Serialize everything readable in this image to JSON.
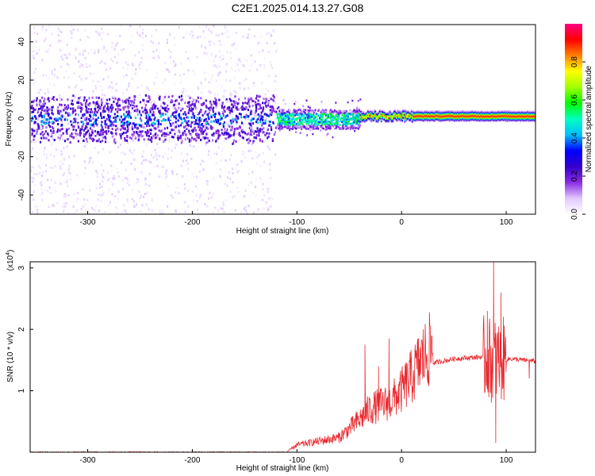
{
  "title": "C2E1.2025.014.13.27.G08",
  "chart_data": [
    {
      "type": "heatmap",
      "xlabel": "Height of straight line (km)",
      "ylabel": "Frequency (Hz)",
      "xlim": [
        -355,
        128
      ],
      "ylim": [
        -50,
        49
      ],
      "xticks": [
        -300,
        -200,
        -100,
        0,
        100
      ],
      "yticks": [
        -40,
        -20,
        0,
        20,
        40
      ],
      "colorbar": {
        "label": "Normalized spectral amplitude",
        "range": [
          0,
          1
        ],
        "ticks": [
          "0.0",
          "0.2",
          "0.4",
          "0.6",
          "0.8"
        ],
        "colors": [
          "#ffffff",
          "#e0c8ff",
          "#8a2be2",
          "#3300cc",
          "#0000ff",
          "#00bfff",
          "#00ffc0",
          "#00ff00",
          "#a0ff00",
          "#ffff00",
          "#ff8000",
          "#ff0000",
          "#ff0080"
        ]
      },
      "regions": [
        {
          "x": [
            -355,
            -120
          ],
          "description_level": "noisy",
          "core_band_hz": [
            -10,
            10
          ]
        },
        {
          "x": [
            -120,
            -40
          ],
          "description_level": "emerging",
          "core_band_hz": [
            -5,
            5
          ]
        },
        {
          "x": [
            -40,
            128
          ],
          "description_level": "stable",
          "center_hz": 1.5,
          "peak_amplitude": 0.95
        }
      ]
    },
    {
      "type": "line",
      "xlabel": "Height of straight line (km)",
      "ylabel": "SNR (10 * v/v)",
      "yscale_note": "(x10",
      "yscale_exp": "4",
      "xlim": [
        -355,
        128
      ],
      "ylim": [
        0,
        3.1
      ],
      "xticks": [
        -300,
        -200,
        -100,
        0,
        100
      ],
      "yticks": [
        1,
        2,
        3
      ],
      "line_color": "#e8282d",
      "anchors": [
        {
          "x": -355,
          "y": 0.0
        },
        {
          "x": -110,
          "y": 0.0
        },
        {
          "x": -100,
          "y": 0.1
        },
        {
          "x": -80,
          "y": 0.15
        },
        {
          "x": -60,
          "y": 0.2
        },
        {
          "x": -40,
          "y": 0.45
        },
        {
          "x": -30,
          "y": 0.6
        },
        {
          "x": -10,
          "y": 0.7
        },
        {
          "x": 0,
          "y": 0.85
        },
        {
          "x": 10,
          "y": 1.05
        },
        {
          "x": 20,
          "y": 1.3
        },
        {
          "x": 30,
          "y": 1.45
        },
        {
          "x": 50,
          "y": 1.52
        },
        {
          "x": 75,
          "y": 1.55
        },
        {
          "x": 85,
          "y": 1.5
        },
        {
          "x": 95,
          "y": 1.5
        },
        {
          "x": 105,
          "y": 1.52
        },
        {
          "x": 128,
          "y": 1.48
        }
      ],
      "spikes": [
        {
          "x": -35,
          "y": 1.75
        },
        {
          "x": -22,
          "y": 1.4
        },
        {
          "x": -12,
          "y": 1.85
        },
        {
          "x": 82,
          "y": 2.3
        },
        {
          "x": 88,
          "y": 3.1
        },
        {
          "x": 90,
          "y": 0.15
        },
        {
          "x": 95,
          "y": 2.6
        },
        {
          "x": 122,
          "y": 1.2
        }
      ]
    }
  ]
}
